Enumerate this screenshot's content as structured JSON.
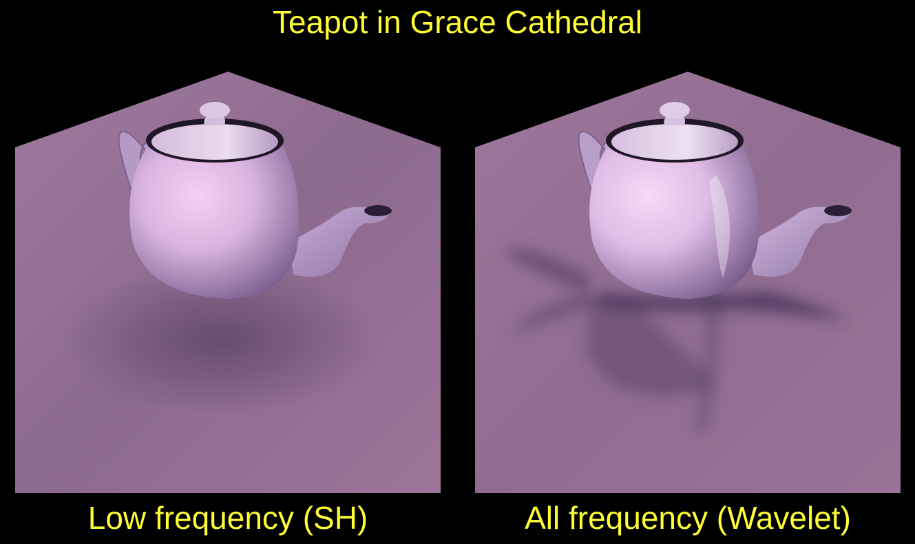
{
  "title": "Teapot in Grace Cathedral",
  "colors": {
    "text": "#ffff33",
    "background": "#000000",
    "floor": "#9a7096",
    "teapot_light": "#f4d8f2",
    "teapot_shadow": "#6e5284"
  },
  "panels": [
    {
      "caption": "Low frequency (SH)",
      "shadow": "soft"
    },
    {
      "caption": "All frequency (Wavelet)",
      "shadow": "sharp"
    }
  ]
}
